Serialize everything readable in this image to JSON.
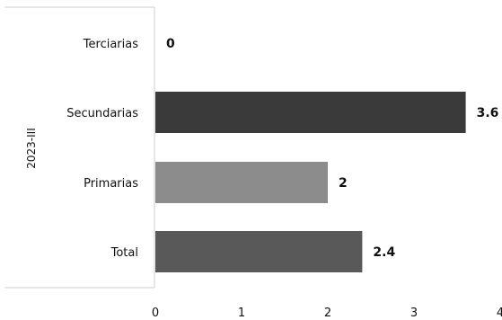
{
  "chart_data": {
    "type": "bar",
    "orientation": "horizontal",
    "group_label": "2023-III",
    "categories": [
      "Terciarias",
      "Secundarias",
      "Primarias",
      "Total"
    ],
    "values": [
      0,
      3.6,
      2,
      2.4
    ],
    "value_labels": [
      "0",
      "3.6",
      "2",
      "2.4"
    ],
    "colors": [
      "#3a3a3a",
      "#3a3a3a",
      "#8c8c8c",
      "#595959"
    ],
    "x_ticks": [
      "0",
      "1",
      "2",
      "3",
      "4"
    ],
    "xlim": [
      0,
      4
    ],
    "grid": false,
    "legend": "none"
  }
}
